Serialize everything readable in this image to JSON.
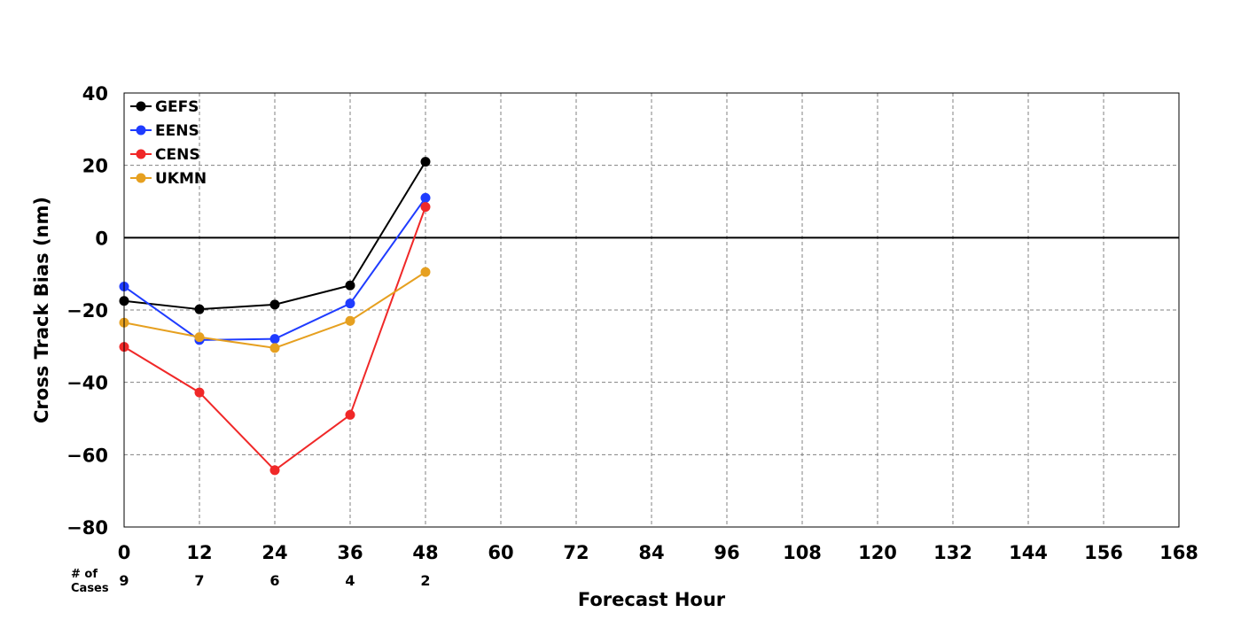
{
  "chart_data": {
    "type": "line",
    "title": "",
    "xlabel": "Forecast Hour",
    "ylabel": "Cross Track Bias (nm)",
    "xlim": [
      0,
      168
    ],
    "ylim": [
      -80,
      40
    ],
    "xticks": [
      0,
      12,
      24,
      36,
      48,
      60,
      72,
      84,
      96,
      108,
      120,
      132,
      144,
      156,
      168
    ],
    "yticks": [
      -80,
      -60,
      -40,
      -20,
      0,
      20,
      40
    ],
    "xtick_labels": [
      "0",
      "12",
      "24",
      "36",
      "48",
      "60",
      "72",
      "84",
      "96",
      "108",
      "120",
      "132",
      "144",
      "156",
      "168"
    ],
    "ytick_labels": [
      "−80",
      "−60",
      "−40",
      "−20",
      "0",
      "20",
      "40"
    ],
    "grid": true,
    "zero_line": true,
    "legend_position": "top-left",
    "x": [
      0,
      12,
      24,
      36,
      48
    ],
    "series": [
      {
        "name": "GEFS",
        "color": "#000000",
        "values": [
          -17.5,
          -19.8,
          -18.5,
          -13.2,
          21.0
        ]
      },
      {
        "name": "EENS",
        "color": "#1f3cff",
        "values": [
          -13.5,
          -28.3,
          -28.0,
          -18.2,
          11.0
        ]
      },
      {
        "name": "CENS",
        "color": "#f02828",
        "values": [
          -30.2,
          -42.8,
          -64.3,
          -49.0,
          8.5
        ]
      },
      {
        "name": "UKMN",
        "color": "#e6a020",
        "values": [
          -23.5,
          -27.5,
          -30.5,
          -23.0,
          -9.5
        ]
      }
    ],
    "cases_label": "# of\nCases",
    "cases_label_lines": [
      "# of",
      "Cases"
    ],
    "cases_x": [
      0,
      12,
      24,
      36,
      48
    ],
    "cases": [
      "9",
      "7",
      "6",
      "4",
      "2"
    ]
  }
}
